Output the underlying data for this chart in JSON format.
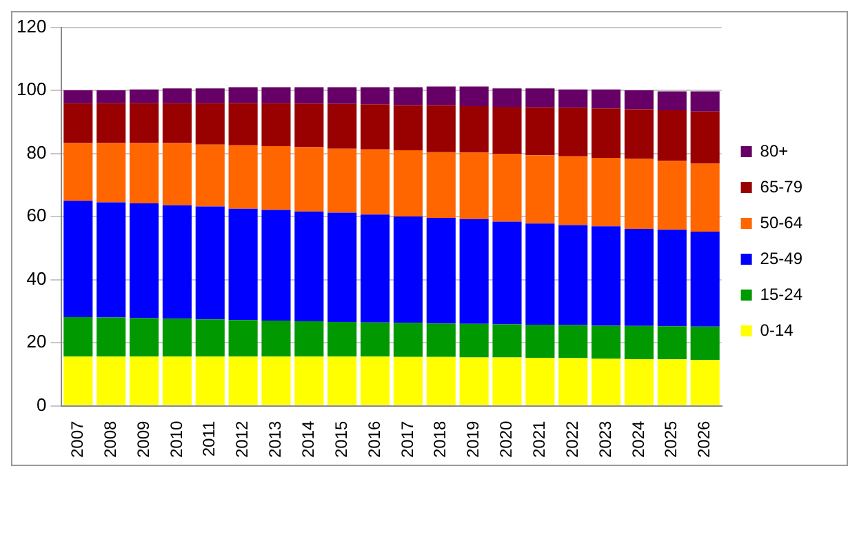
{
  "chart_data": {
    "type": "bar",
    "stacked": true,
    "categories": [
      "2007",
      "2008",
      "2009",
      "2010",
      "2011",
      "2012",
      "2013",
      "2014",
      "2015",
      "2016",
      "2017",
      "2018",
      "2019",
      "2020",
      "2021",
      "2022",
      "2023",
      "2024",
      "2025",
      "2026"
    ],
    "series": [
      {
        "name": "0-14",
        "color": "#ffff00",
        "values": [
          15.6,
          15.6,
          15.6,
          15.6,
          15.6,
          15.6,
          15.6,
          15.6,
          15.6,
          15.6,
          15.5,
          15.5,
          15.3,
          15.3,
          15.2,
          15.1,
          14.9,
          14.8,
          14.7,
          14.5
        ]
      },
      {
        "name": "15-24",
        "color": "#009900",
        "values": [
          12.5,
          12.4,
          12.2,
          12.0,
          11.8,
          11.6,
          11.4,
          11.2,
          11.0,
          10.8,
          10.8,
          10.6,
          10.7,
          10.5,
          10.5,
          10.5,
          10.5,
          10.5,
          10.5,
          10.6
        ]
      },
      {
        "name": "25-49",
        "color": "#0000ff",
        "values": [
          36.9,
          36.5,
          36.4,
          36.0,
          35.8,
          35.3,
          35.1,
          34.8,
          34.6,
          34.2,
          33.7,
          33.5,
          33.2,
          32.6,
          32.1,
          31.7,
          31.5,
          30.8,
          30.6,
          30.1
        ]
      },
      {
        "name": "50-64",
        "color": "#ff6600",
        "values": [
          18.3,
          18.8,
          19.1,
          19.7,
          19.6,
          20.1,
          20.2,
          20.4,
          20.3,
          20.7,
          21.0,
          20.8,
          21.1,
          21.5,
          21.6,
          21.8,
          21.7,
          22.2,
          21.9,
          21.6
        ]
      },
      {
        "name": "65-79",
        "color": "#990000",
        "values": [
          12.6,
          12.6,
          12.6,
          12.6,
          13.1,
          13.4,
          13.6,
          13.8,
          14.2,
          14.3,
          14.3,
          14.9,
          14.7,
          14.9,
          15.2,
          15.4,
          15.7,
          15.7,
          16.0,
          16.5
        ]
      },
      {
        "name": "80+",
        "color": "#660066",
        "values": [
          4.1,
          4.1,
          4.4,
          4.7,
          4.7,
          5.0,
          5.1,
          5.2,
          5.3,
          5.4,
          5.7,
          5.9,
          6.2,
          5.8,
          6.0,
          5.8,
          6.0,
          6.0,
          6.0,
          6.4
        ]
      }
    ],
    "ylim": [
      0,
      120
    ],
    "yticks": [
      0,
      20,
      40,
      60,
      80,
      100,
      120
    ],
    "grid": "y",
    "legend": "right"
  }
}
